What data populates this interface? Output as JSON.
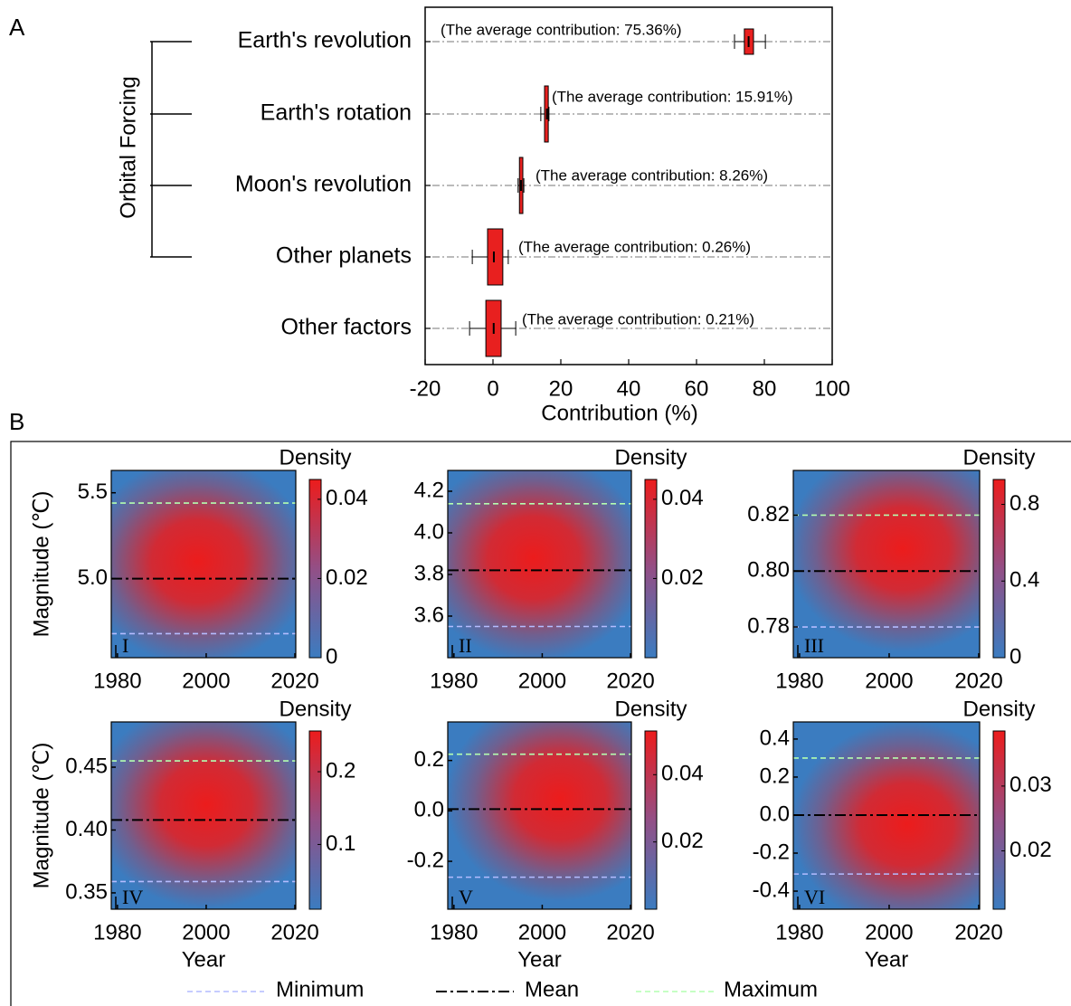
{
  "chart_data": [
    {
      "type": "box",
      "panel_label": "A",
      "group_label": "Orbital Forcing",
      "categories": [
        "Earth's revolution",
        "Earth's rotation",
        "Moon's revolution",
        "Other planets",
        "Other factors"
      ],
      "whisker_low": [
        71.2,
        14.1,
        7.4,
        -6.1,
        -6.9
      ],
      "q1": [
        74.1,
        15.2,
        7.8,
        -1.6,
        -2.1
      ],
      "q3": [
        76.8,
        16.3,
        8.8,
        2.9,
        2.4
      ],
      "whisker_high": [
        80.3,
        16.5,
        9.1,
        4.5,
        6.7
      ],
      "means": [
        75.36,
        15.91,
        8.26,
        0.26,
        0.21
      ],
      "value_labels": [
        "(The average contribution: 75.36%)",
        "(The average contribution: 15.91%)",
        "(The average contribution: 8.26%)",
        "(The average contribution: 0.26%)",
        "(The average contribution: 0.21%)"
      ],
      "color": "#e8201f",
      "xlabel": "Contribution (%)",
      "xlim": [
        -20,
        100
      ],
      "xticks": [
        -20,
        0,
        20,
        40,
        60,
        80,
        100
      ]
    },
    {
      "type": "heatmap",
      "numeral": "I",
      "ylabel": "Magnitude (℃)",
      "colorbar_label": "Density",
      "xlim": [
        1978.6,
        2020.2
      ],
      "xticks": [
        1980,
        2000,
        2020
      ],
      "ylim": [
        4.54,
        5.63
      ],
      "yticks": [
        5.5,
        {
          "value": 5,
          "label": "5.0"
        }
      ],
      "clim": [
        0,
        0.045
      ],
      "cticks": [
        0,
        0.02,
        0.04
      ],
      "reference": {
        "min": 4.68,
        "mean": 5.0,
        "max": 5.44
      },
      "peak_year": 1998,
      "peak_magnitude": 5.1
    },
    {
      "type": "heatmap",
      "numeral": "II",
      "colorbar_label": "Density",
      "xlim": [
        1978.6,
        2020.2
      ],
      "xticks": [
        1980,
        2000,
        2020
      ],
      "ylim": [
        3.4,
        4.3
      ],
      "yticks": [
        4.2,
        {
          "value": 4,
          "label": "4.0"
        },
        3.8,
        3.6
      ],
      "clim": [
        0,
        0.045
      ],
      "cticks": [
        0.02,
        0.04
      ],
      "reference": {
        "min": 3.55,
        "mean": 3.82,
        "max": 4.14
      },
      "peak_year": 1998,
      "peak_magnitude": 3.88
    },
    {
      "type": "heatmap",
      "numeral": "III",
      "colorbar_label": "Density",
      "xlim": [
        1978.6,
        2020.2
      ],
      "xticks": [
        1980,
        2000,
        2020
      ],
      "ylim": [
        0.769,
        0.836
      ],
      "yticks": [
        0.82,
        {
          "value": 0.8,
          "label": "0.80"
        },
        0.78
      ],
      "clim": [
        0,
        0.93
      ],
      "cticks": [
        0,
        0.4,
        0.8
      ],
      "reference": {
        "min": 0.78,
        "mean": 0.8,
        "max": 0.82
      },
      "peak_year": 2003,
      "peak_magnitude": 0.808
    },
    {
      "type": "heatmap",
      "numeral": "IV",
      "ylabel": "Magnitude (℃)",
      "xlabel": "Year",
      "colorbar_label": "Density",
      "xlim": [
        1978.6,
        2020.2
      ],
      "xticks": [
        1980,
        2000,
        2020
      ],
      "ylim": [
        0.337,
        0.486
      ],
      "yticks": [
        0.45,
        {
          "value": 0.4,
          "label": "0.40"
        },
        0.35
      ],
      "clim": [
        0.011,
        0.256
      ],
      "cticks": [
        0.1,
        0.2
      ],
      "reference": {
        "min": 0.359,
        "mean": 0.408,
        "max": 0.455
      },
      "peak_year": 2000,
      "peak_magnitude": 0.42
    },
    {
      "type": "heatmap",
      "numeral": "V",
      "xlabel": "Year",
      "colorbar_label": "Density",
      "xlim": [
        1978.6,
        2020.2
      ],
      "xticks": [
        1980,
        2000,
        2020
      ],
      "ylim": [
        -0.39,
        0.353
      ],
      "yticks": [
        0.2,
        {
          "value": 0,
          "label": "0.0"
        },
        -0.2
      ],
      "clim": [
        0,
        0.053
      ],
      "cticks": [
        0.02,
        0.04
      ],
      "reference": {
        "min": -0.263,
        "mean": 0.007,
        "max": 0.225
      },
      "peak_year": 2004,
      "peak_magnitude": 0.05
    },
    {
      "type": "heatmap",
      "numeral": "VI",
      "xlabel": "Year",
      "colorbar_label": "Density",
      "xlim": [
        1978.6,
        2020.2
      ],
      "xticks": [
        1980,
        2000,
        2020
      ],
      "ylim": [
        -0.495,
        0.49
      ],
      "yticks": [
        0.4,
        0.2,
        {
          "value": 0,
          "label": "0.0"
        },
        -0.2,
        -0.4
      ],
      "clim": [
        0.011,
        0.0385
      ],
      "cticks": [
        0.02,
        0.03
      ],
      "reference": {
        "min": -0.31,
        "mean": 0.0,
        "max": 0.3
      },
      "peak_year": 2004,
      "peak_magnitude": -0.05
    }
  ],
  "panel_b": {
    "label": "B",
    "legend": [
      {
        "name": "Minimum",
        "color": "#b4bcff"
      },
      {
        "name": "Mean",
        "color": "#000000"
      },
      {
        "name": "Maximum",
        "color": "#b4ffb0"
      }
    ]
  }
}
